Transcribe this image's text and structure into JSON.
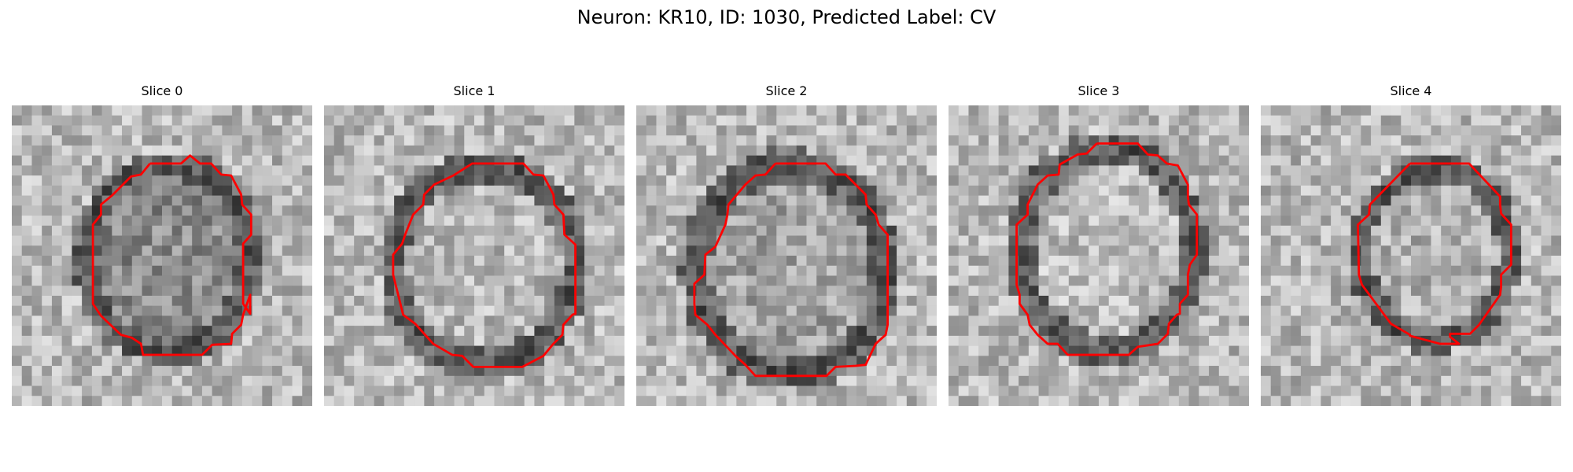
{
  "figure": {
    "title": "Neuron: KR10, ID: 1030, Predicted Label: CV"
  },
  "panels": [
    {
      "title": "Slice 0"
    },
    {
      "title": "Slice 1"
    },
    {
      "title": "Slice 2"
    },
    {
      "title": "Slice 3"
    },
    {
      "title": "Slice 4"
    }
  ],
  "colors": {
    "contour": "#ff0000",
    "background": "#ffffff"
  }
}
